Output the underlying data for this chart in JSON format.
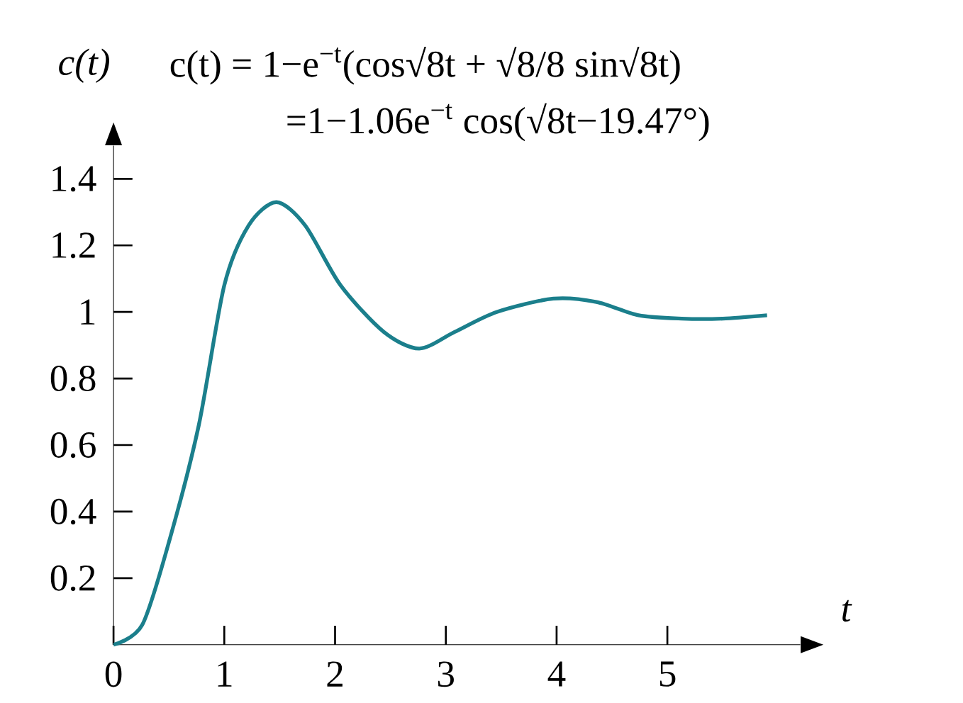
{
  "chart_data": {
    "type": "line",
    "xlabel": "t",
    "ylabel": "c(t)",
    "annotations": [
      "c(t) = 1−e$^{−t}$(cos√8t + √8/8 sin√8t)",
      "=1−1.06e$^{−t}$ cos(√8t−19.47°)"
    ],
    "x": [
      0,
      0.26,
      0.51,
      0.77,
      1.0,
      1.22,
      1.47,
      1.73,
      2.05,
      2.44,
      2.76,
      3.08,
      3.46,
      3.97,
      4.36,
      4.74,
      5.13,
      5.5,
      5.9
    ],
    "series": [
      {
        "color": "#1b7f8c",
        "values": [
          0,
          0.06,
          0.32,
          0.66,
          1.08,
          1.26,
          1.33,
          1.26,
          1.08,
          0.94,
          0.89,
          0.94,
          1.0,
          1.04,
          1.03,
          0.99,
          0.98,
          0.98,
          0.99
        ]
      }
    ],
    "xlim": [
      0,
      6.2
    ],
    "ylim": [
      0,
      1.5
    ],
    "xticks": [
      0,
      1,
      2,
      3,
      4,
      5
    ],
    "yticks": [
      0.2,
      0.4,
      0.6,
      0.8,
      1,
      1.2,
      1.4
    ],
    "marker": "none",
    "line_style": "solid"
  }
}
